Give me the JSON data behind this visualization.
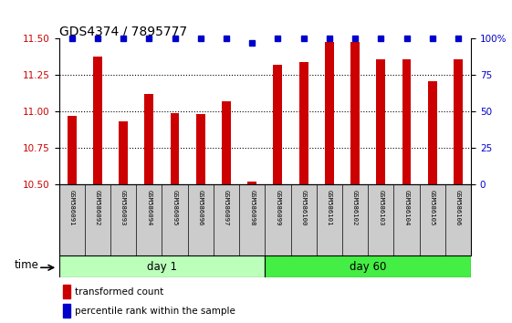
{
  "title": "GDS4374 / 7895777",
  "samples": [
    "GSM586091",
    "GSM586092",
    "GSM586093",
    "GSM586094",
    "GSM586095",
    "GSM586096",
    "GSM586097",
    "GSM586098",
    "GSM586099",
    "GSM586100",
    "GSM586101",
    "GSM586102",
    "GSM586103",
    "GSM586104",
    "GSM586105",
    "GSM586106"
  ],
  "red_values": [
    10.97,
    11.38,
    10.93,
    11.12,
    10.99,
    10.98,
    11.07,
    10.52,
    11.32,
    11.34,
    11.48,
    11.48,
    11.36,
    11.36,
    11.21,
    11.36
  ],
  "blue_values": [
    100,
    100,
    100,
    100,
    100,
    100,
    100,
    97,
    100,
    100,
    100,
    100,
    100,
    100,
    100,
    100
  ],
  "ylim_left": [
    10.5,
    11.5
  ],
  "ylim_right": [
    0,
    100
  ],
  "yticks_left": [
    10.5,
    10.75,
    11.0,
    11.25,
    11.5
  ],
  "yticks_right": [
    0,
    25,
    50,
    75,
    100
  ],
  "grid_lines": [
    10.75,
    11.0,
    11.25
  ],
  "day1_samples": 8,
  "day60_samples": 8,
  "bar_color": "#cc0000",
  "dot_color": "#0000cc",
  "day1_label": "day 1",
  "day60_label": "day 60",
  "day1_color": "#bbffbb",
  "day60_color": "#44ee44",
  "time_label": "time",
  "legend_red": "transformed count",
  "legend_blue": "percentile rank within the sample",
  "left_tick_color": "#cc0000",
  "right_tick_color": "#0000cc",
  "plot_bg": "#ffffff",
  "label_bg": "#cccccc",
  "bar_width": 0.35
}
